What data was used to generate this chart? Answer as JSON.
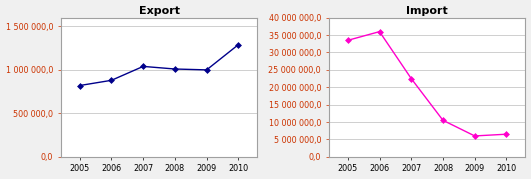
{
  "years": [
    2005,
    2006,
    2007,
    2008,
    2009,
    2010
  ],
  "export_values": [
    820000,
    880000,
    1040000,
    1010000,
    1000000,
    1290000
  ],
  "import_values": [
    33500000,
    36000000,
    22500000,
    10500000,
    6000000,
    6500000
  ],
  "export_title": "Export",
  "import_title": "Import",
  "export_color": "#00008B",
  "import_color": "#FF00CC",
  "export_ylim": [
    0,
    1600000
  ],
  "export_yticks": [
    0,
    500000,
    1000000,
    1500000
  ],
  "import_ylim": [
    0,
    40000000
  ],
  "import_yticks": [
    0,
    5000000,
    10000000,
    15000000,
    20000000,
    25000000,
    30000000,
    35000000,
    40000000
  ],
  "bg_color": "#f0f0f0",
  "plot_bg_color": "#ffffff",
  "grid_color": "#c8c8c8",
  "tick_color": "#cc3300",
  "x_tick_color": "#000000",
  "title_fontsize": 8,
  "tick_fontsize": 5.8,
  "border_color": "#a0a0a0"
}
